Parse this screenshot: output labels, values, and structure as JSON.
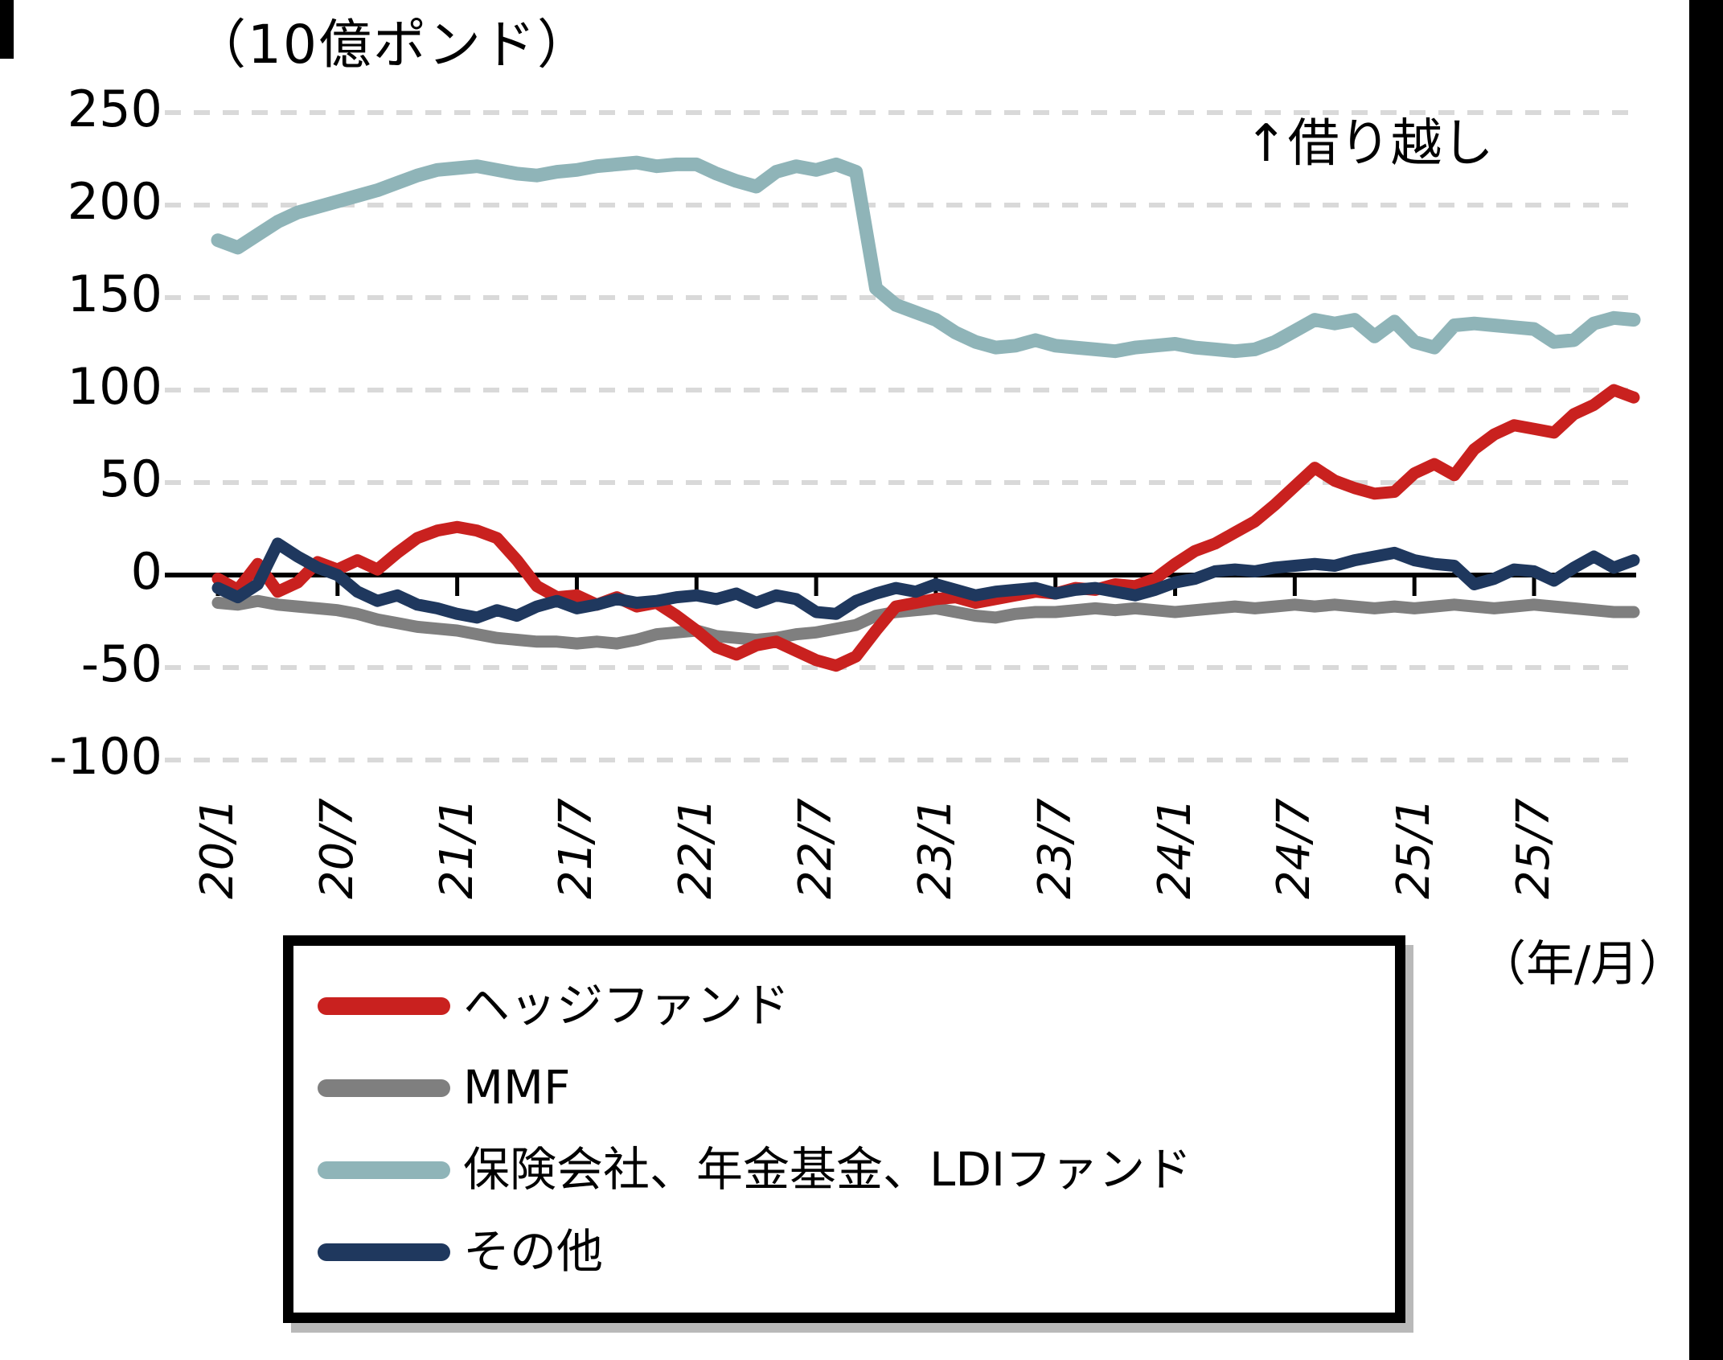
{
  "title": "（10億ポンド）",
  "annotation": "↑借り越し",
  "x_axis_unit": "（年/月）",
  "colors": {
    "hedge_funds": "#c9211f",
    "mmf": "#7f7f7f",
    "insurance_pension_ldi": "#8fb4b8",
    "others": "#1f385e",
    "gridline": "#d9d9d9",
    "axis": "#000000"
  },
  "legend": {
    "items": [
      {
        "key": "hedge-funds",
        "label": "ヘッジファンド",
        "color": "#c9211f"
      },
      {
        "key": "mmf",
        "label": "MMF",
        "color": "#7f7f7f"
      },
      {
        "key": "insurance-pension-ldi",
        "label": "保険会社、年金基金、LDIファンド",
        "color": "#8fb4b8"
      },
      {
        "key": "others",
        "label": "その他",
        "color": "#1f385e"
      }
    ]
  },
  "chart_data": {
    "type": "line",
    "title": "（10億ポンド）",
    "xlabel": "（年/月）",
    "ylabel": "10億ポンド",
    "ylim": [
      -100,
      250
    ],
    "y_ticks": [
      250,
      200,
      150,
      100,
      50,
      0,
      -50,
      -100
    ],
    "y_gridlines_dashed": [
      250,
      200,
      150,
      100,
      50,
      -50,
      -100
    ],
    "grid": "horizontal dashed, solid black zero axis",
    "legend_position": "bottom boxed",
    "annotation": "↑借り越し",
    "x_tick_labels": [
      "20/1",
      "20/7",
      "21/1",
      "21/7",
      "22/1",
      "22/7",
      "23/1",
      "23/7",
      "24/1",
      "24/7",
      "25/1",
      "25/7"
    ],
    "x": [
      "20/1",
      "20/2",
      "20/3",
      "20/4",
      "20/5",
      "20/6",
      "20/7",
      "20/8",
      "20/9",
      "20/10",
      "20/11",
      "20/12",
      "21/1",
      "21/2",
      "21/3",
      "21/4",
      "21/5",
      "21/6",
      "21/7",
      "21/8",
      "21/9",
      "21/10",
      "21/11",
      "21/12",
      "22/1",
      "22/2",
      "22/3",
      "22/4",
      "22/5",
      "22/6",
      "22/7",
      "22/8",
      "22/9",
      "22/10",
      "22/11",
      "22/12",
      "23/1",
      "23/2",
      "23/3",
      "23/4",
      "23/5",
      "23/6",
      "23/7",
      "23/8",
      "23/9",
      "23/10",
      "23/11",
      "23/12",
      "24/1",
      "24/2",
      "24/3",
      "24/4",
      "24/5",
      "24/6",
      "24/7",
      "24/8",
      "24/9",
      "24/10",
      "24/11",
      "24/12",
      "25/1",
      "25/2",
      "25/3",
      "25/4",
      "25/5",
      "25/6",
      "25/7",
      "25/8",
      "25/9",
      "25/10",
      "25/11",
      "25/12"
    ],
    "series": [
      {
        "key": "hedge-funds",
        "name": "ヘッジファンド",
        "color": "#c9211f",
        "values": [
          -2,
          -8,
          6,
          -9,
          -4,
          7,
          3,
          8,
          3,
          12,
          20,
          24,
          26,
          24,
          20,
          8,
          -6,
          -12,
          -11,
          -16,
          -12,
          -17,
          -15,
          -22,
          -30,
          -39,
          -43,
          -38,
          -36,
          -41,
          -46,
          -49,
          -44,
          -30,
          -17,
          -15,
          -13,
          -12,
          -15,
          -13,
          -11,
          -9,
          -10,
          -7,
          -8,
          -5,
          -6,
          -2,
          6,
          13,
          17,
          23,
          29,
          38,
          48,
          58,
          51,
          47,
          44,
          45,
          55,
          60,
          54,
          68,
          76,
          81,
          79,
          77,
          87,
          92,
          100,
          96
        ]
      },
      {
        "key": "mmf",
        "name": "MMF",
        "color": "#7f7f7f",
        "values": [
          -15,
          -16,
          -14,
          -16,
          -17,
          -18,
          -19,
          -21,
          -24,
          -26,
          -28,
          -29,
          -30,
          -32,
          -34,
          -35,
          -36,
          -36,
          -37,
          -36,
          -37,
          -35,
          -32,
          -31,
          -30,
          -33,
          -34,
          -35,
          -34,
          -32,
          -31,
          -29,
          -27,
          -22,
          -20,
          -19,
          -18,
          -20,
          -22,
          -23,
          -21,
          -20,
          -20,
          -19,
          -18,
          -19,
          -18,
          -19,
          -20,
          -19,
          -18,
          -17,
          -18,
          -17,
          -16,
          -17,
          -16,
          -17,
          -18,
          -17,
          -18,
          -17,
          -16,
          -17,
          -18,
          -17,
          -16,
          -17,
          -18,
          -19,
          -20,
          -20
        ]
      },
      {
        "key": "insurance-pension-ldi",
        "name": "保険会社、年金基金、LDIファンド",
        "color": "#8fb4b8",
        "values": [
          181,
          177,
          184,
          191,
          196,
          199,
          202,
          205,
          208,
          212,
          216,
          219,
          220,
          221,
          219,
          217,
          216,
          218,
          219,
          221,
          222,
          223,
          221,
          222,
          222,
          217,
          213,
          210,
          218,
          221,
          219,
          222,
          218,
          155,
          146,
          142,
          138,
          131,
          126,
          123,
          124,
          127,
          124,
          123,
          122,
          121,
          123,
          124,
          125,
          123,
          122,
          121,
          122,
          126,
          132,
          138,
          136,
          138,
          129,
          137,
          126,
          123,
          135,
          136,
          135,
          134,
          133,
          126,
          127,
          136,
          139,
          138
        ]
      },
      {
        "key": "others",
        "name": "その他",
        "color": "#1f385e",
        "values": [
          -7,
          -12,
          -5,
          17,
          10,
          4,
          0,
          -9,
          -14,
          -11,
          -16,
          -18,
          -21,
          -23,
          -19,
          -22,
          -17,
          -14,
          -18,
          -16,
          -13,
          -15,
          -14,
          -12,
          -11,
          -13,
          -10,
          -15,
          -11,
          -13,
          -20,
          -21,
          -14,
          -10,
          -7,
          -9,
          -5,
          -8,
          -11,
          -9,
          -8,
          -7,
          -10,
          -8,
          -7,
          -9,
          -11,
          -8,
          -4,
          -2,
          2,
          3,
          2,
          4,
          5,
          6,
          5,
          8,
          10,
          12,
          8,
          6,
          5,
          -5,
          -2,
          3,
          2,
          -3,
          4,
          10,
          4,
          8
        ]
      }
    ]
  }
}
